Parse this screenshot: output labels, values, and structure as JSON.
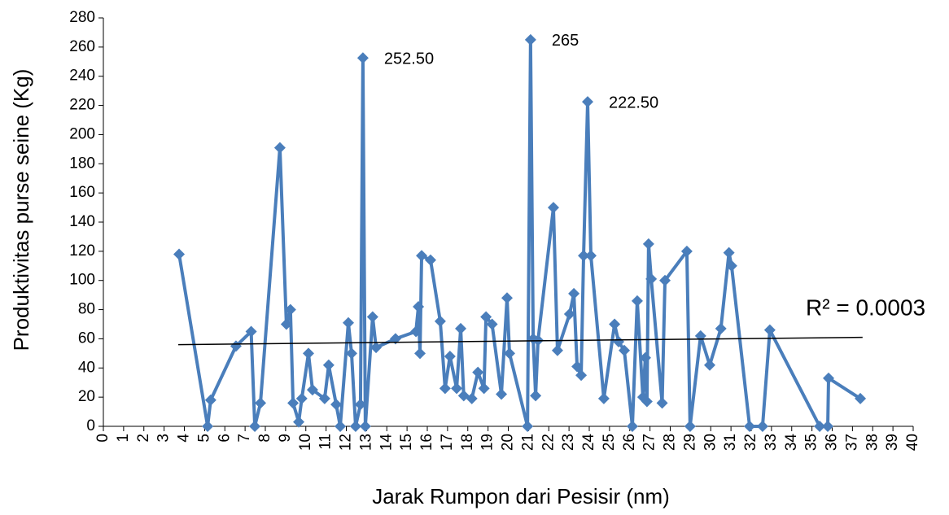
{
  "chart_data": {
    "type": "line",
    "xlabel": "Jarak Rumpon dari Pesisir (nm)",
    "ylabel": "Produktivitas  purse seine (Kg)",
    "color": "#4a7ebb",
    "x": [
      3.74,
      5.15,
      5.3,
      6.55,
      7.3,
      7.48,
      7.76,
      8.72,
      9.04,
      9.24,
      9.37,
      9.65,
      9.8,
      10.13,
      10.33,
      10.93,
      11.13,
      11.5,
      11.7,
      12.1,
      12.26,
      12.46,
      12.7,
      12.82,
      12.94,
      13.3,
      13.47,
      14.43,
      15.44,
      15.56,
      15.64,
      15.72,
      16.16,
      16.64,
      16.88,
      17.12,
      17.45,
      17.65,
      17.8,
      18.2,
      18.5,
      18.8,
      18.9,
      19.2,
      19.66,
      19.94,
      20.06,
      20.95,
      21.1,
      21.23,
      21.35,
      21.47,
      22.23,
      22.43,
      23.03,
      23.24,
      23.4,
      23.6,
      23.72,
      23.92,
      24.08,
      24.72,
      25.25,
      25.45,
      25.73,
      26.13,
      26.37,
      26.65,
      26.77,
      26.85,
      26.93,
      27.06,
      27.6,
      27.74,
      28.82,
      28.98,
      29.5,
      29.95,
      30.5,
      30.9,
      31.03,
      31.92,
      32.56,
      32.92,
      35.38,
      35.78,
      35.82,
      37.39
    ],
    "values": [
      118,
      0,
      18,
      55,
      65,
      0,
      16,
      191,
      70,
      80,
      16,
      3,
      19,
      50,
      25,
      19,
      42,
      15,
      0,
      71,
      50,
      0,
      15,
      252.5,
      0,
      75,
      54,
      60,
      65,
      82,
      50,
      117,
      114,
      72,
      26,
      48,
      26,
      67,
      21,
      19,
      37,
      26,
      75,
      70,
      22,
      88,
      50,
      0,
      265,
      60,
      21,
      59,
      150,
      52,
      77,
      91,
      41,
      35,
      117,
      222.5,
      117,
      19,
      70,
      58,
      52,
      0,
      86,
      20,
      47,
      17,
      125,
      101,
      16,
      100,
      120,
      0,
      62,
      42,
      67,
      119,
      110,
      0,
      0,
      66,
      0,
      0,
      33,
      19
    ],
    "value_labels": [
      null,
      null,
      null,
      null,
      null,
      null,
      null,
      null,
      null,
      null,
      null,
      null,
      null,
      null,
      null,
      null,
      null,
      null,
      null,
      null,
      null,
      null,
      null,
      "252.50",
      null,
      null,
      null,
      null,
      null,
      null,
      null,
      null,
      null,
      null,
      null,
      null,
      null,
      null,
      null,
      null,
      null,
      null,
      null,
      null,
      null,
      null,
      null,
      null,
      "265",
      null,
      null,
      null,
      null,
      null,
      null,
      null,
      null,
      null,
      null,
      "222.50",
      null,
      null,
      null,
      null,
      null,
      null,
      null,
      null,
      null,
      null,
      null,
      null,
      null,
      null,
      null,
      null,
      null,
      null,
      null,
      null,
      null,
      null,
      null,
      null,
      null,
      null,
      null,
      null
    ],
    "trend": {
      "x": [
        3.7,
        37.5
      ],
      "values": [
        56,
        61
      ],
      "label": "R² = 0.0003"
    },
    "xlim": [
      0,
      40
    ],
    "xticks": [
      0,
      1,
      2,
      3,
      4,
      5,
      6,
      7,
      8,
      9,
      10,
      11,
      12,
      13,
      14,
      15,
      16,
      17,
      18,
      19,
      20,
      21,
      22,
      23,
      24,
      25,
      26,
      27,
      28,
      29,
      30,
      31,
      32,
      33,
      34,
      35,
      36,
      37,
      38,
      39,
      40
    ],
    "ylim": [
      0,
      280
    ],
    "yticks": [
      0,
      20,
      40,
      60,
      80,
      100,
      120,
      140,
      160,
      180,
      200,
      220,
      240,
      260,
      280
    ]
  }
}
